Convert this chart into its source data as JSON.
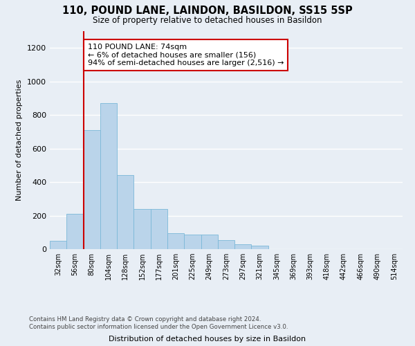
{
  "title": "110, POUND LANE, LAINDON, BASILDON, SS15 5SP",
  "subtitle": "Size of property relative to detached houses in Basildon",
  "xlabel": "Distribution of detached houses by size in Basildon",
  "ylabel": "Number of detached properties",
  "footer": "Contains HM Land Registry data © Crown copyright and database right 2024.\nContains public sector information licensed under the Open Government Licence v3.0.",
  "bar_color": "#bad4ea",
  "bar_edge_color": "#7ab8d8",
  "bg_color": "#e8eef5",
  "annotation_box_color": "#ffffff",
  "annotation_border_color": "#cc0000",
  "vline_color": "#cc0000",
  "categories": [
    "32sqm",
    "56sqm",
    "80sqm",
    "104sqm",
    "128sqm",
    "152sqm",
    "177sqm",
    "201sqm",
    "225sqm",
    "249sqm",
    "273sqm",
    "297sqm",
    "321sqm",
    "345sqm",
    "369sqm",
    "393sqm",
    "418sqm",
    "442sqm",
    "466sqm",
    "490sqm",
    "514sqm"
  ],
  "values": [
    50,
    210,
    710,
    870,
    440,
    240,
    240,
    95,
    85,
    85,
    55,
    30,
    20,
    0,
    0,
    0,
    0,
    0,
    0,
    0,
    0
  ],
  "ylim": [
    0,
    1300
  ],
  "yticks": [
    0,
    200,
    400,
    600,
    800,
    1000,
    1200
  ],
  "vline_x_index": 1,
  "annotation_line1": "110 POUND LANE: 74sqm",
  "annotation_line2": "← 6% of detached houses are smaller (156)",
  "annotation_line3": "94% of semi-detached houses are larger (2,516) →",
  "grid_color": "#ffffff",
  "footer_color": "#444444"
}
